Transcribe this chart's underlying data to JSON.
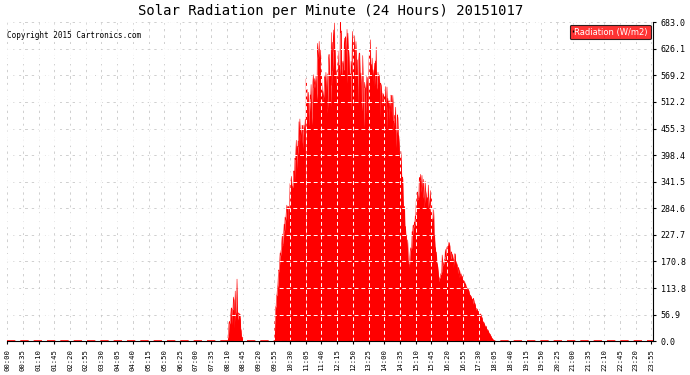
{
  "title": "Solar Radiation per Minute (24 Hours) 20151017",
  "copyright_text": "Copyright 2015 Cartronics.com",
  "legend_label": "Radiation (W/m2)",
  "background_color": "#ffffff",
  "plot_bg_color": "#ffffff",
  "fill_color": "#ff0000",
  "line_color": "#ff0000",
  "grid_color": "#c8c8c8",
  "yticks": [
    0.0,
    56.9,
    113.8,
    170.8,
    227.7,
    284.6,
    341.5,
    398.4,
    455.3,
    512.2,
    569.2,
    626.1,
    683.0
  ],
  "xtick_labels": [
    "00:00",
    "00:35",
    "01:10",
    "01:45",
    "02:20",
    "02:55",
    "03:30",
    "04:05",
    "04:40",
    "05:15",
    "05:50",
    "06:25",
    "07:00",
    "07:35",
    "08:10",
    "08:45",
    "09:20",
    "09:55",
    "10:30",
    "11:05",
    "11:40",
    "12:15",
    "12:50",
    "13:25",
    "14:00",
    "14:35",
    "15:10",
    "15:45",
    "16:20",
    "16:55",
    "17:30",
    "18:05",
    "18:40",
    "19:15",
    "19:50",
    "20:25",
    "21:00",
    "21:35",
    "22:10",
    "22:45",
    "23:20",
    "23:55"
  ],
  "num_minutes": 1440,
  "peak_value": 683.0,
  "figwidth": 6.9,
  "figheight": 3.75,
  "dpi": 100
}
